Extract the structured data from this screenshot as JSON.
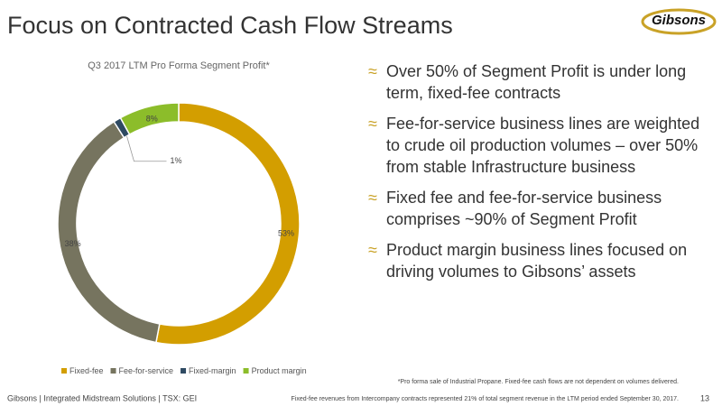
{
  "title": "Focus on Contracted Cash Flow Streams",
  "logo": "Gibsons",
  "chart_data": {
    "type": "donut",
    "title": "Q3 2017 LTM Pro Forma Segment Profit*",
    "categories": [
      "Fixed-fee",
      "Fee-for-service",
      "Fixed-margin",
      "Product margin"
    ],
    "values": [
      53,
      38,
      1,
      8
    ],
    "value_labels": [
      "53%",
      "38%",
      "1%",
      "8%"
    ],
    "colors": [
      "#d39e00",
      "#76745f",
      "#2e4a62",
      "#8cbd2a"
    ],
    "legend": "bottom"
  },
  "bullet_marker": "≈",
  "bullets": [
    "Over 50% of Segment Profit is under long term, fixed-fee contracts",
    "Fee-for-service business lines are weighted to crude oil production volumes – over 50% from stable Infrastructure business",
    "Fixed fee and fee-for-service business comprises ~90% of Segment Profit",
    "Product margin business lines focused on driving volumes to Gibsons’ assets"
  ],
  "footer": "Gibsons  |  Integrated Midstream Solutions  |  TSX: GEI",
  "footnotes": [
    "*Pro forma sale of Industrial Propane. Fixed-fee cash flows are not dependent on volumes delivered.",
    "Fixed-fee revenues from Intercompany contracts represented 21% of total segment revenue in the LTM period ended September 30, 2017."
  ],
  "page_number": "13"
}
